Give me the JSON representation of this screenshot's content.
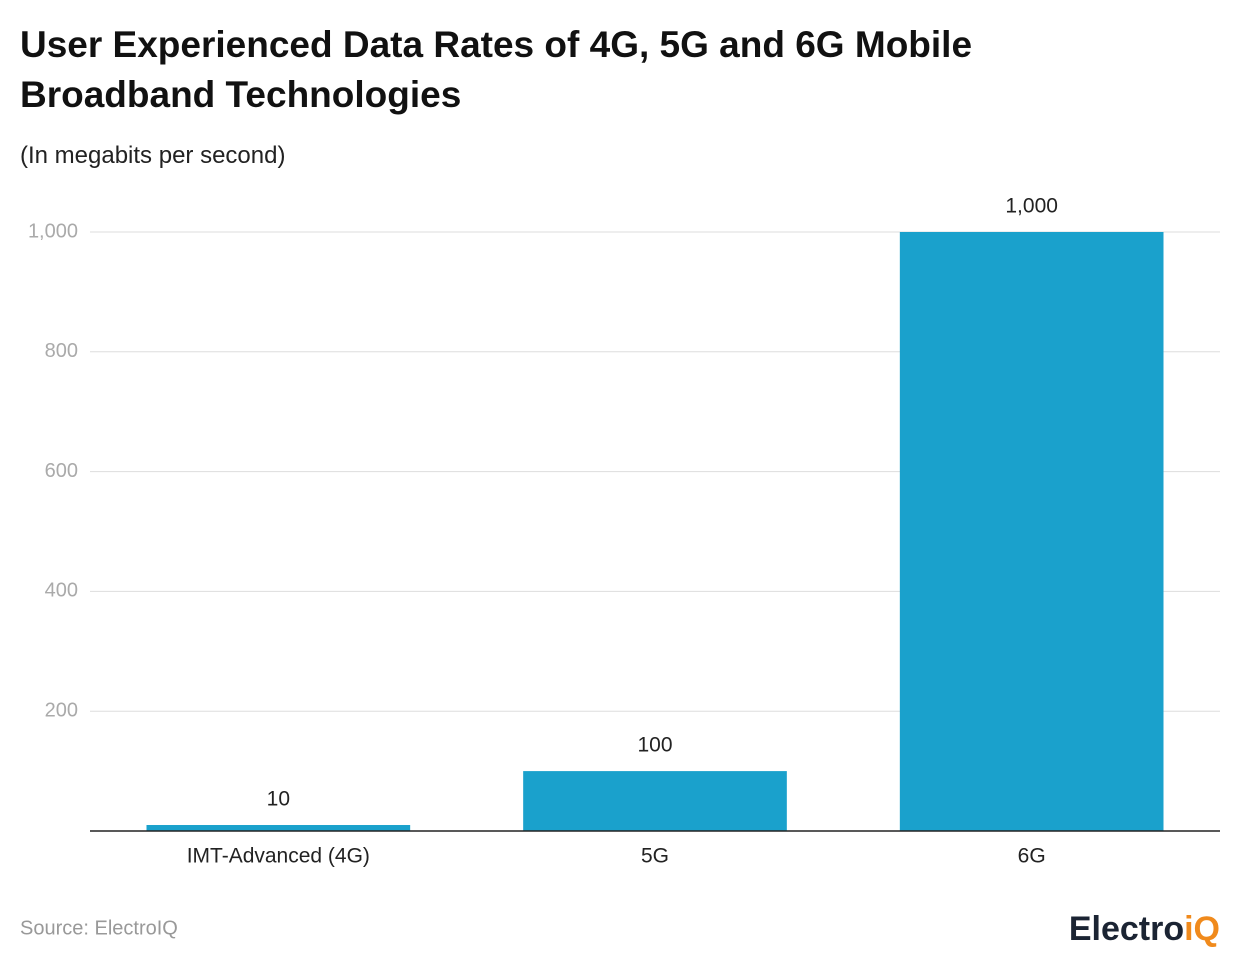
{
  "chart_data": {
    "type": "bar",
    "title": "User Experienced Data Rates of 4G, 5G and 6G Mobile Broadband Technologies",
    "subtitle": "(In megabits per second)",
    "categories": [
      "IMT-Advanced (4G)",
      "5G",
      "6G"
    ],
    "values": [
      10,
      100,
      1000
    ],
    "value_labels": [
      "10",
      "100",
      "1,000"
    ],
    "color": "#1aa1cc",
    "ylim": [
      0,
      1000
    ],
    "yticks": [
      200,
      400,
      600,
      800,
      {
        "value": 1000,
        "label": "1,000"
      }
    ],
    "grid": true,
    "source": "Source: ElectroIQ",
    "logo": [
      "Electro",
      "iQ"
    ]
  }
}
